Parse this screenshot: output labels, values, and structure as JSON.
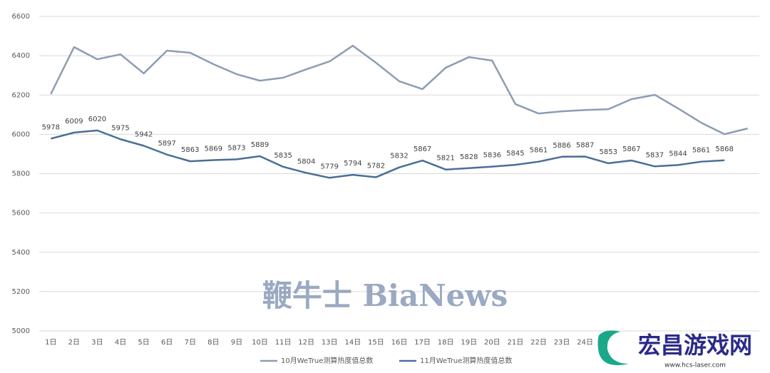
{
  "chart_data": {
    "type": "line",
    "categories": [
      "1日",
      "2日",
      "3日",
      "4日",
      "5日",
      "6日",
      "7日",
      "8日",
      "9日",
      "10日",
      "11日",
      "12日",
      "13日",
      "14日",
      "15日",
      "16日",
      "17日",
      "18日",
      "19日",
      "20日",
      "21日",
      "22日",
      "23日",
      "24日",
      null,
      null,
      null,
      null,
      null,
      null,
      null
    ],
    "series": [
      {
        "name": "10月WeTrue测算热度值总数",
        "color": "#8c9db2",
        "values": [
          6205,
          6444,
          6382,
          6407,
          6310,
          6426,
          6415,
          6357,
          6306,
          6273,
          6288,
          6331,
          6371,
          6451,
          6364,
          6270,
          6230,
          6339,
          6393,
          6375,
          6154,
          6106,
          6117,
          6124,
          6128,
          6179,
          6201,
          6132,
          6059,
          6001,
          6030
        ]
      },
      {
        "name": "11月WeTrue测算热度值总数",
        "color": "#4a6e98",
        "data_labels": true,
        "values": [
          5978,
          6009,
          6020,
          5975,
          5942,
          5897,
          5863,
          5869,
          5873,
          5889,
          5835,
          5804,
          5779,
          5794,
          5782,
          5832,
          5867,
          5821,
          5828,
          5836,
          5845,
          5861,
          5886,
          5887,
          5853,
          5867,
          5837,
          5844,
          5861,
          5868,
          null
        ]
      }
    ],
    "ylim": [
      5000,
      6600
    ],
    "yticks": [
      5000,
      5200,
      5400,
      5600,
      5800,
      6000,
      6200,
      6400,
      6600
    ],
    "grid": true,
    "legend": "bottom"
  },
  "watermark": "鞭牛士 BiaNews",
  "logo": {
    "name": "宏昌游戏网",
    "url": "www.hcs-laser.com"
  }
}
